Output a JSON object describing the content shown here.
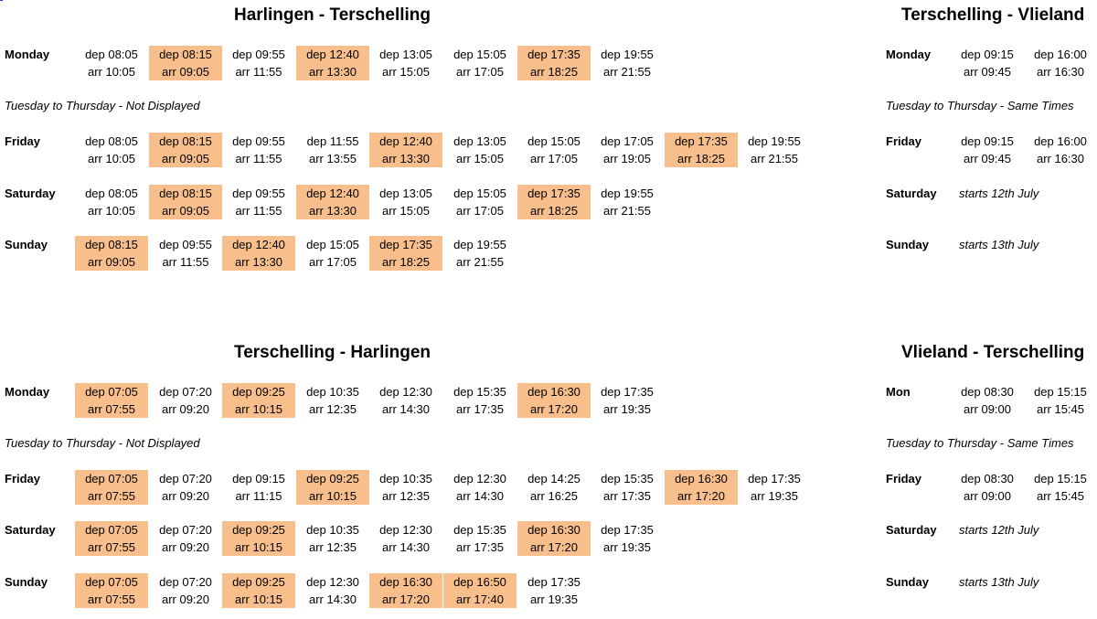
{
  "colors": {
    "highlight": "#f8bf8c"
  },
  "sections": [
    {
      "id": "harlingen-terschelling",
      "title": "Harlingen - Terschelling",
      "rows": [
        {
          "day": "Monday",
          "times": [
            {
              "dep": "dep 08:05",
              "arr": "arr 10:05",
              "hl": false
            },
            {
              "dep": "dep 08:15",
              "arr": "arr 09:05",
              "hl": true
            },
            {
              "dep": "dep 09:55",
              "arr": "arr 11:55",
              "hl": false
            },
            {
              "dep": "dep 12:40",
              "arr": "arr 13:30",
              "hl": true
            },
            {
              "dep": "dep 13:05",
              "arr": "arr 15:05",
              "hl": false
            },
            {
              "dep": "dep 15:05",
              "arr": "arr 17:05",
              "hl": false
            },
            {
              "dep": "dep 17:35",
              "arr": "arr 18:25",
              "hl": true
            },
            {
              "dep": "dep 19:55",
              "arr": "arr 21:55",
              "hl": false
            }
          ]
        },
        {
          "note": "Tuesday to Thursday - Not Displayed"
        },
        {
          "day": "Friday",
          "times": [
            {
              "dep": "dep 08:05",
              "arr": "arr 10:05",
              "hl": false
            },
            {
              "dep": "dep 08:15",
              "arr": "arr 09:05",
              "hl": true
            },
            {
              "dep": "dep 09:55",
              "arr": "arr 11:55",
              "hl": false
            },
            {
              "dep": "dep 11:55",
              "arr": "arr 13:55",
              "hl": false
            },
            {
              "dep": "dep 12:40",
              "arr": "arr 13:30",
              "hl": true
            },
            {
              "dep": "dep 13:05",
              "arr": "arr 15:05",
              "hl": false
            },
            {
              "dep": "dep 15:05",
              "arr": "arr 17:05",
              "hl": false
            },
            {
              "dep": "dep 17:05",
              "arr": "arr 19:05",
              "hl": false
            },
            {
              "dep": "dep 17:35",
              "arr": "arr 18:25",
              "hl": true
            },
            {
              "dep": "dep 19:55",
              "arr": "arr 21:55",
              "hl": false
            }
          ]
        },
        {
          "day": "Saturday",
          "times": [
            {
              "dep": "dep 08:05",
              "arr": "arr 10:05",
              "hl": false
            },
            {
              "dep": "dep 08:15",
              "arr": "arr 09:05",
              "hl": true
            },
            {
              "dep": "dep 09:55",
              "arr": "arr 11:55",
              "hl": false
            },
            {
              "dep": "dep 12:40",
              "arr": "arr 13:30",
              "hl": true
            },
            {
              "dep": "dep 13:05",
              "arr": "arr 15:05",
              "hl": false
            },
            {
              "dep": "dep 15:05",
              "arr": "arr 17:05",
              "hl": false
            },
            {
              "dep": "dep 17:35",
              "arr": "arr 18:25",
              "hl": true
            },
            {
              "dep": "dep 19:55",
              "arr": "arr 21:55",
              "hl": false
            }
          ]
        },
        {
          "day": "Sunday",
          "times": [
            {
              "dep": "dep 08:15",
              "arr": "arr 09:05",
              "hl": true
            },
            {
              "dep": "dep 09:55",
              "arr": "arr 11:55",
              "hl": false
            },
            {
              "dep": "dep 12:40",
              "arr": "arr 13:30",
              "hl": true
            },
            {
              "dep": "dep 15:05",
              "arr": "arr 17:05",
              "hl": false
            },
            {
              "dep": "dep 17:35",
              "arr": "arr 18:25",
              "hl": true
            },
            {
              "dep": "dep 19:55",
              "arr": "arr 21:55",
              "hl": false
            }
          ]
        }
      ]
    },
    {
      "id": "terschelling-vlieland",
      "title": "Terschelling - Vlieland",
      "rows": [
        {
          "day": "Monday",
          "times": [
            {
              "dep": "dep 09:15",
              "arr": "arr 09:45",
              "hl": false
            },
            {
              "dep": "dep 16:00",
              "arr": "arr 16:30",
              "hl": false
            }
          ]
        },
        {
          "note": "Tuesday to Thursday - Same Times"
        },
        {
          "day": "Friday",
          "times": [
            {
              "dep": "dep 09:15",
              "arr": "arr 09:45",
              "hl": false
            },
            {
              "dep": "dep 16:00",
              "arr": "arr 16:30",
              "hl": false
            }
          ]
        },
        {
          "day": "Saturday",
          "text": "starts 12th July"
        },
        {
          "day": "Sunday",
          "text": "starts 13th July"
        }
      ]
    },
    {
      "id": "terschelling-harlingen",
      "title": "Terschelling - Harlingen",
      "rows": [
        {
          "day": "Monday",
          "times": [
            {
              "dep": "dep 07:05",
              "arr": "arr 07:55",
              "hl": true
            },
            {
              "dep": "dep 07:20",
              "arr": "arr 09:20",
              "hl": false
            },
            {
              "dep": "dep 09:25",
              "arr": "arr 10:15",
              "hl": true
            },
            {
              "dep": "dep 10:35",
              "arr": "arr 12:35",
              "hl": false
            },
            {
              "dep": "dep 12:30",
              "arr": "arr 14:30",
              "hl": false
            },
            {
              "dep": "dep 15:35",
              "arr": "arr 17:35",
              "hl": false
            },
            {
              "dep": "dep 16:30",
              "arr": "arr 17:20",
              "hl": true
            },
            {
              "dep": "dep 17:35",
              "arr": "arr 19:35",
              "hl": false
            }
          ]
        },
        {
          "note": "Tuesday to Thursday - Not Displayed"
        },
        {
          "day": "Friday",
          "times": [
            {
              "dep": "dep 07:05",
              "arr": "arr 07:55",
              "hl": true
            },
            {
              "dep": "dep 07:20",
              "arr": "arr 09:20",
              "hl": false
            },
            {
              "dep": "dep 09:15",
              "arr": "arr 11:15",
              "hl": false
            },
            {
              "dep": "dep 09:25",
              "arr": "arr 10:15",
              "hl": true
            },
            {
              "dep": "dep 10:35",
              "arr": "arr 12:35",
              "hl": false
            },
            {
              "dep": "dep 12:30",
              "arr": "arr 14:30",
              "hl": false
            },
            {
              "dep": "dep 14:25",
              "arr": "arr 16:25",
              "hl": false
            },
            {
              "dep": "dep 15:35",
              "arr": "arr 17:35",
              "hl": false
            },
            {
              "dep": "dep 16:30",
              "arr": "arr 17:20",
              "hl": true
            },
            {
              "dep": "dep 17:35",
              "arr": "arr 19:35",
              "hl": false
            }
          ]
        },
        {
          "day": "Saturday",
          "times": [
            {
              "dep": "dep 07:05",
              "arr": "arr 07:55",
              "hl": true
            },
            {
              "dep": "dep 07:20",
              "arr": "arr 09:20",
              "hl": false
            },
            {
              "dep": "dep 09:25",
              "arr": "arr 10:15",
              "hl": true
            },
            {
              "dep": "dep 10:35",
              "arr": "arr 12:35",
              "hl": false
            },
            {
              "dep": "dep 12:30",
              "arr": "arr 14:30",
              "hl": false
            },
            {
              "dep": "dep 15:35",
              "arr": "arr 17:35",
              "hl": false
            },
            {
              "dep": "dep 16:30",
              "arr": "arr 17:20",
              "hl": true
            },
            {
              "dep": "dep 17:35",
              "arr": "arr 19:35",
              "hl": false
            }
          ]
        },
        {
          "day": "Sunday",
          "times": [
            {
              "dep": "dep 07:05",
              "arr": "arr 07:55",
              "hl": true
            },
            {
              "dep": "dep 07:20",
              "arr": "arr 09:20",
              "hl": false
            },
            {
              "dep": "dep 09:25",
              "arr": "arr 10:15",
              "hl": true
            },
            {
              "dep": "dep 12:30",
              "arr": "arr 14:30",
              "hl": false
            },
            {
              "dep": "dep 16:30",
              "arr": "arr 17:20",
              "hl": true
            },
            {
              "dep": "dep 16:50",
              "arr": "arr 17:40",
              "hl": true
            },
            {
              "dep": "dep 17:35",
              "arr": "arr 19:35",
              "hl": false
            }
          ]
        }
      ]
    },
    {
      "id": "vlieland-terschelling",
      "title": "Vlieland - Terschelling",
      "rows": [
        {
          "day": "Mon",
          "times": [
            {
              "dep": "dep 08:30",
              "arr": "arr 09:00",
              "hl": false
            },
            {
              "dep": "dep 15:15",
              "arr": "arr 15:45",
              "hl": false
            }
          ]
        },
        {
          "note": "Tuesday to Thursday - Same Times"
        },
        {
          "day": "Friday",
          "times": [
            {
              "dep": "dep 08:30",
              "arr": "arr 09:00",
              "hl": false
            },
            {
              "dep": "dep 15:15",
              "arr": "arr 15:45",
              "hl": false
            }
          ]
        },
        {
          "day": "Saturday",
          "text": "starts 12th July"
        },
        {
          "day": "Sunday",
          "text": "starts 13th July"
        }
      ]
    }
  ]
}
